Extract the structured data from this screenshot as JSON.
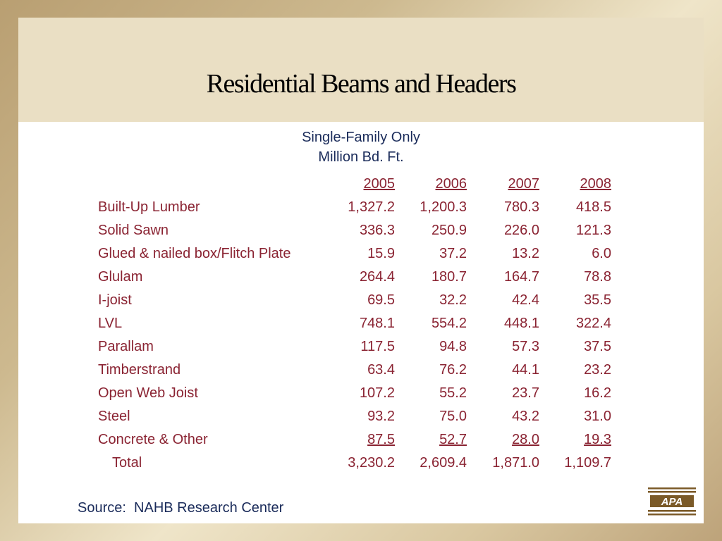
{
  "slide": {
    "title": "Residential Beams and Headers",
    "subtitle_line1": "Single-Family Only",
    "subtitle_line2": "Million Bd. Ft.",
    "source": "Source:  NAHB Research Center",
    "logo_text": "APA"
  },
  "table": {
    "columns": [
      "2005",
      "2006",
      "2007",
      "2008"
    ],
    "rows": [
      {
        "label": "Built-Up Lumber",
        "values": [
          "1,327.2",
          "1,200.3",
          "780.3",
          "418.5"
        ]
      },
      {
        "label": "Solid Sawn",
        "values": [
          "336.3",
          "250.9",
          "226.0",
          "121.3"
        ]
      },
      {
        "label": "Glued & nailed box/Flitch Plate",
        "values": [
          "15.9",
          "37.2",
          "13.2",
          "6.0"
        ]
      },
      {
        "label": "Glulam",
        "values": [
          "264.4",
          "180.7",
          "164.7",
          "78.8"
        ]
      },
      {
        "label": "I-joist",
        "values": [
          "69.5",
          "32.2",
          "42.4",
          "35.5"
        ]
      },
      {
        "label": "LVL",
        "values": [
          "748.1",
          "554.2",
          "448.1",
          "322.4"
        ]
      },
      {
        "label": "Parallam",
        "values": [
          "117.5",
          "94.8",
          "57.3",
          "37.5"
        ]
      },
      {
        "label": "Timberstrand",
        "values": [
          "63.4",
          "76.2",
          "44.1",
          "23.2"
        ]
      },
      {
        "label": "Open Web Joist",
        "values": [
          "107.2",
          "55.2",
          "23.7",
          "16.2"
        ]
      },
      {
        "label": "Steel",
        "values": [
          "93.2",
          "75.0",
          "43.2",
          "31.0"
        ]
      },
      {
        "label": "Concrete & Other",
        "values": [
          "87.5",
          "52.7",
          "28.0",
          "19.3"
        ]
      }
    ],
    "total": {
      "label": "Total",
      "values": [
        "3,230.2",
        "2,609.4",
        "1,871.0",
        "1,109.7"
      ]
    }
  },
  "colors": {
    "table_text": "#8a2332",
    "subtitle_text": "#1a2b5a",
    "header_band": "#eadfc4",
    "logo": "#7b5a28"
  }
}
